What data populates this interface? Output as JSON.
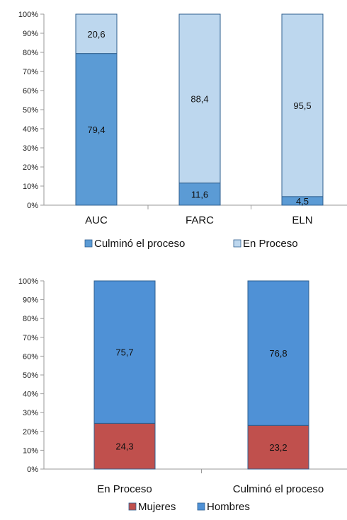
{
  "chart_data": [
    {
      "type": "bar",
      "stacked": true,
      "percent": true,
      "categories": [
        "AUC",
        "FARC",
        "ELN"
      ],
      "series": [
        {
          "name": "Culminó el proceso",
          "values": [
            79.4,
            11.6,
            4.5
          ],
          "labels": [
            "79,4",
            "11,6",
            "4,5"
          ],
          "color": "#5b9bd5"
        },
        {
          "name": "En Proceso",
          "values": [
            20.6,
            88.4,
            95.5
          ],
          "labels": [
            "20,6",
            "88,4",
            "95,5"
          ],
          "color": "#bdd7ee"
        }
      ],
      "yticks": [
        "0%",
        "10%",
        "20%",
        "30%",
        "40%",
        "50%",
        "60%",
        "70%",
        "80%",
        "90%",
        "100%"
      ],
      "ylim": [
        0,
        100
      ],
      "legend": "bottom",
      "grid": false
    },
    {
      "type": "bar",
      "stacked": true,
      "percent": true,
      "categories": [
        "En Proceso",
        "Culminó el proceso"
      ],
      "series": [
        {
          "name": "Mujeres",
          "values": [
            24.3,
            23.2
          ],
          "labels": [
            "24,3",
            "23,2"
          ],
          "color": "#c0504d"
        },
        {
          "name": "Hombres",
          "values": [
            75.7,
            76.8
          ],
          "labels": [
            "75,7",
            "76,8"
          ],
          "color": "#4f91d6"
        }
      ],
      "yticks": [
        "0%",
        "10%",
        "20%",
        "30%",
        "40%",
        "50%",
        "60%",
        "70%",
        "80%",
        "90%",
        "100%"
      ],
      "ylim": [
        0,
        100
      ],
      "legend": "bottom",
      "grid": false
    }
  ]
}
